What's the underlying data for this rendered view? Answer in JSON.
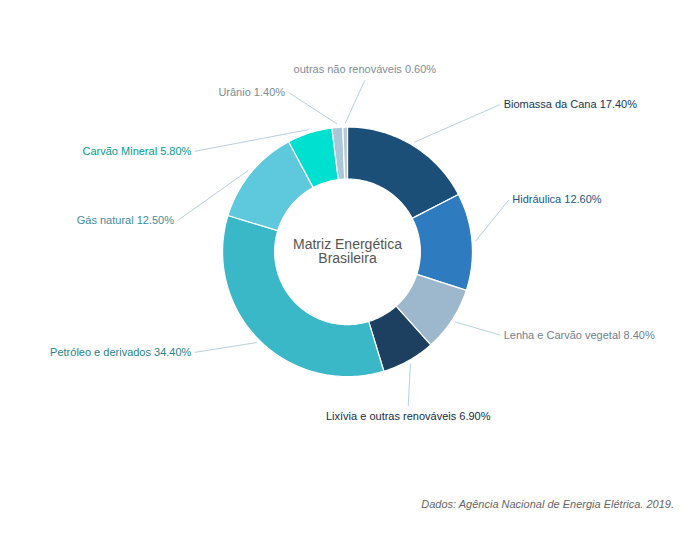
{
  "chart_data": {
    "type": "donut",
    "title": "Matriz Energética Brasileira",
    "annotations": [
      "Dados: Agência Nacional de Energia Elétrica. 2019."
    ],
    "categories": [
      "Biomassa da Cana 17.40%",
      "Hidráulica 12.60%",
      "Lenha e Carvão vegetal 8.40%",
      "Lixívia e outras renováveis 6.90%",
      "Petróleo e derivados 34.40%",
      "Gás natural 12.50%",
      "Carvão Mineral 5.80%",
      "Urânio 1.40%",
      "outras não renováveis 0.60%"
    ],
    "values": [
      17.4,
      12.6,
      8.4,
      6.9,
      34.4,
      12.5,
      5.8,
      1.4,
      0.6
    ],
    "colors": [
      "#1c4f78",
      "#2e7bbf",
      "#9db8cc",
      "#1e4060",
      "#3ab8c8",
      "#5ec8dc",
      "#00e0d0",
      "#a8c8d8",
      "#b8c8d8"
    ]
  }
}
